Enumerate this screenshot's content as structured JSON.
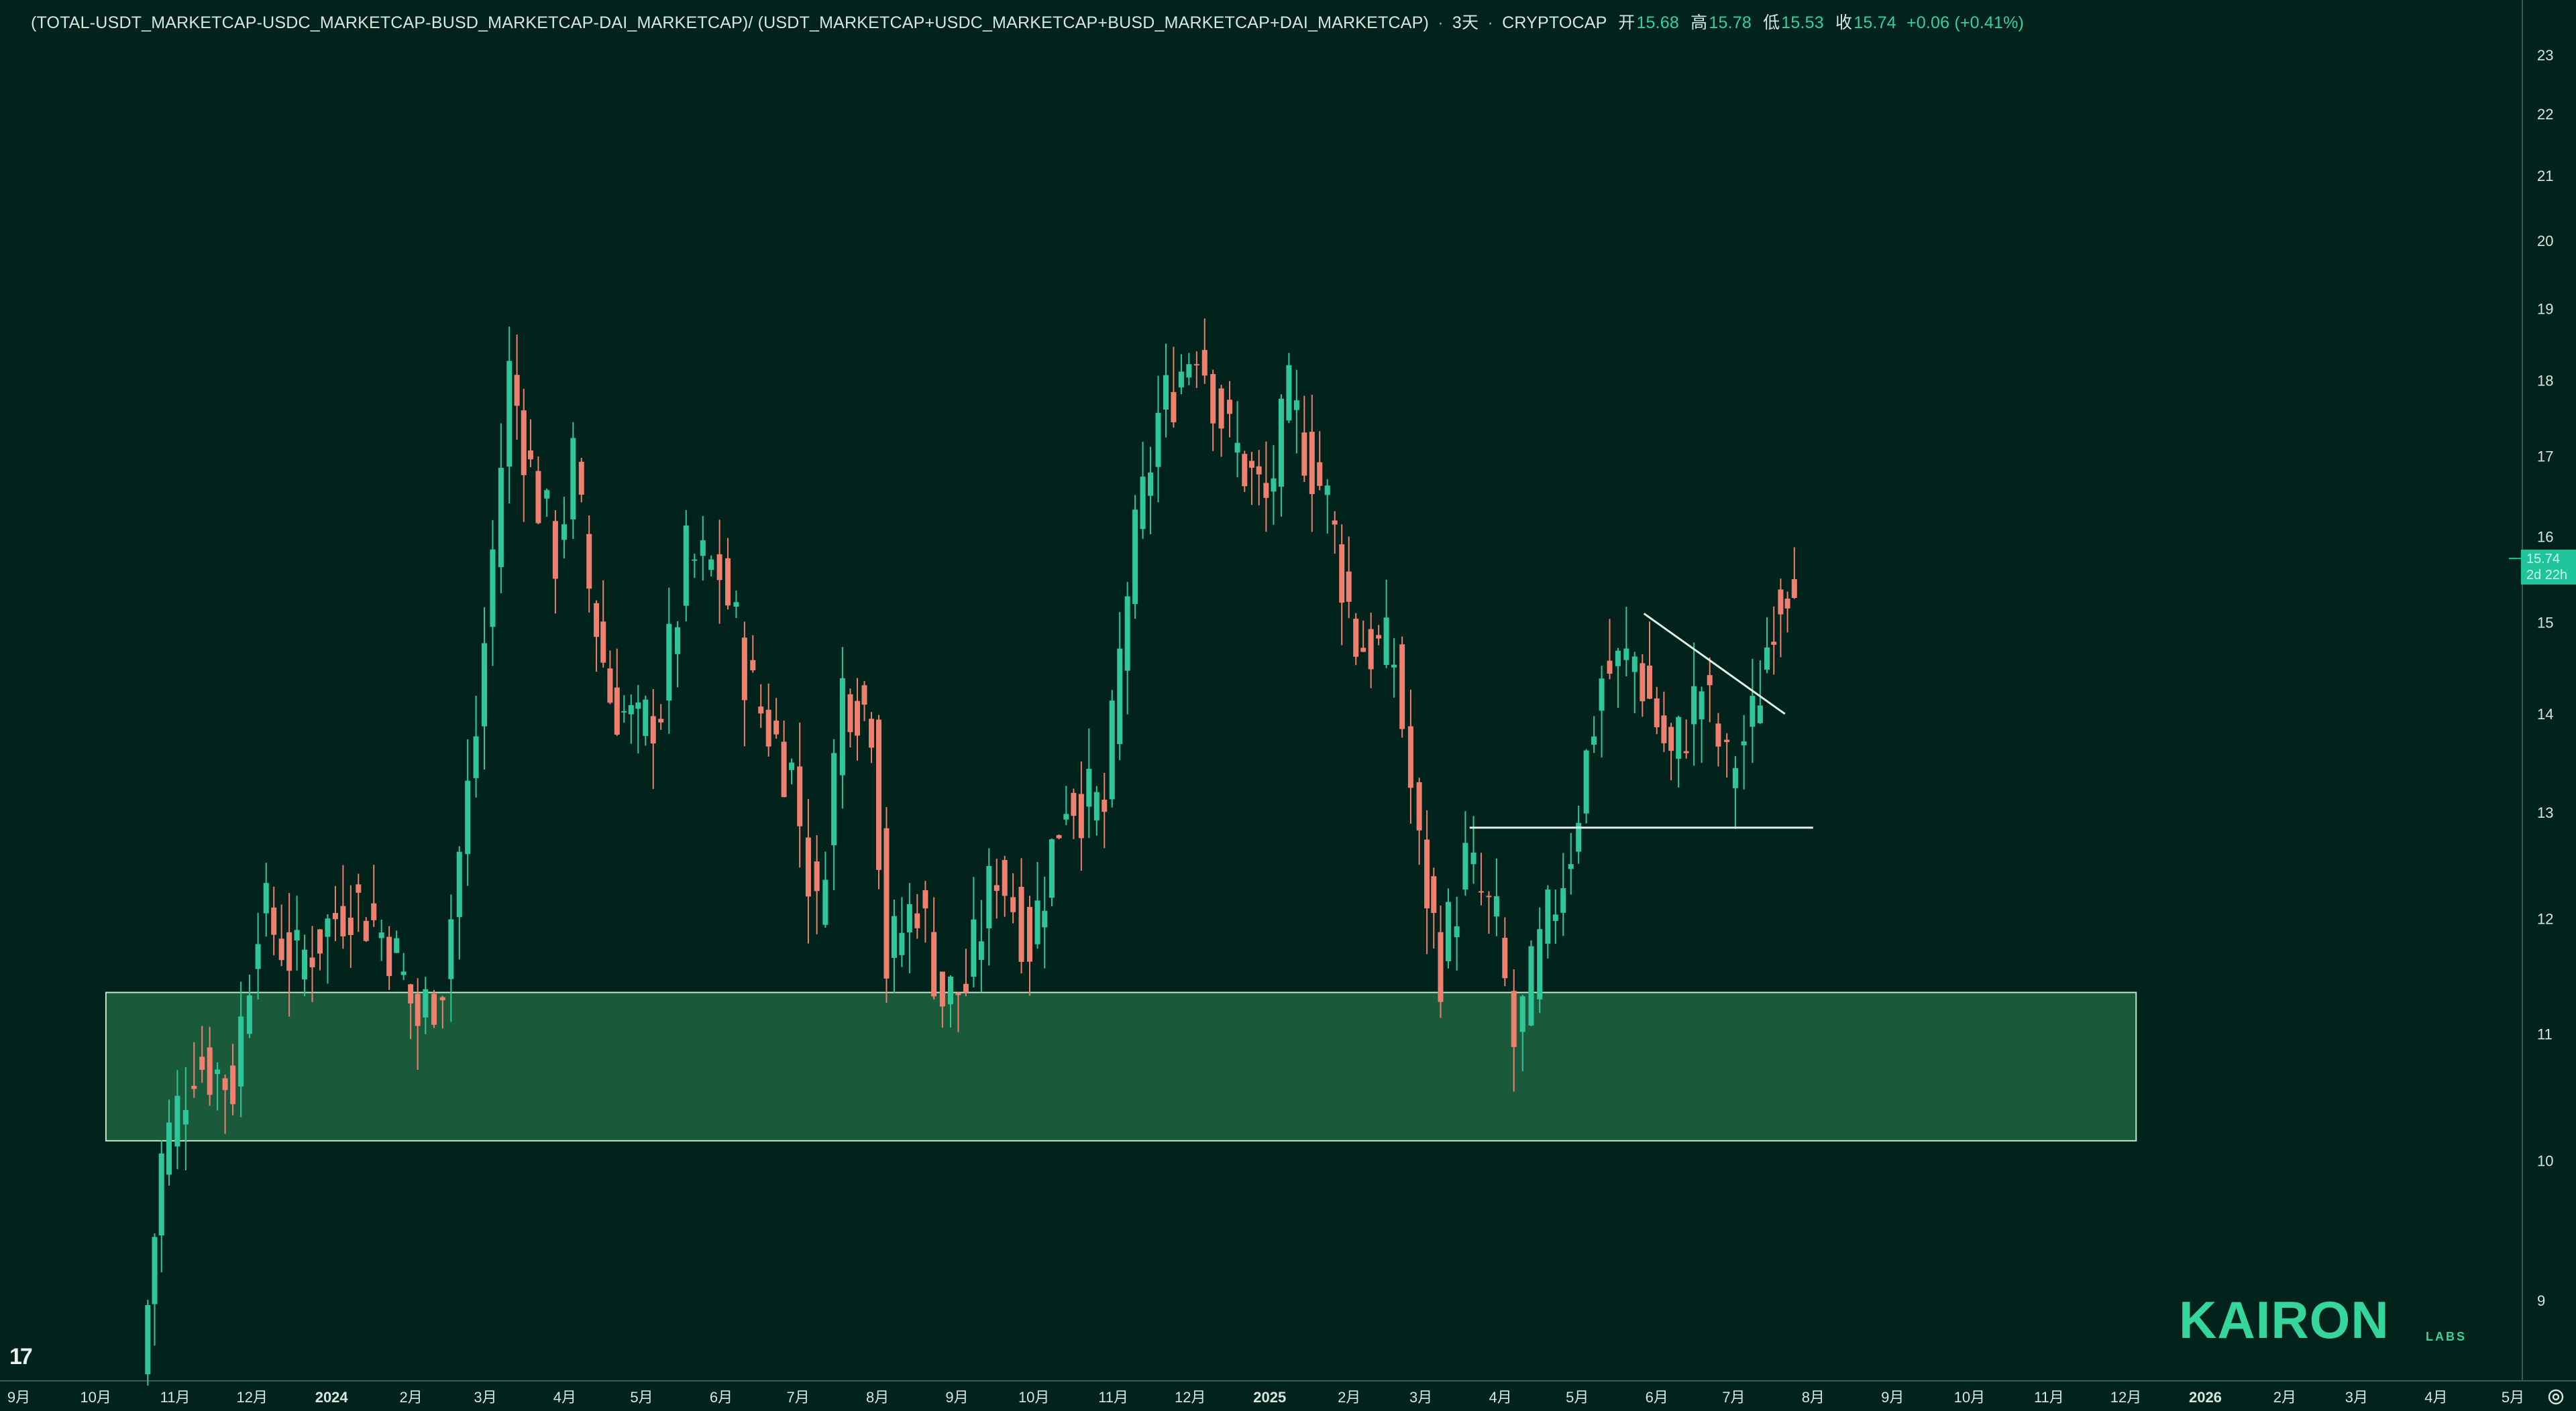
{
  "header": {
    "symbol": "(TOTAL-USDT_MARKETCAP-USDC_MARKETCAP-BUSD_MARKETCAP-DAI_MARKETCAP)/ (USDT_MARKETCAP+USDC_MARKETCAP+BUSD_MARKETCAP+DAI_MARKETCAP)",
    "interval": "3天",
    "exchange": "CRYPTOCAP",
    "open_label": "开",
    "open": "15.68",
    "high_label": "高",
    "high": "15.78",
    "low_label": "低",
    "low": "15.53",
    "close_label": "收",
    "close": "15.74",
    "change": "+0.06 (+0.41%)"
  },
  "last_price_label": {
    "price": "15.74",
    "countdown": "2d 22h"
  },
  "branding": {
    "tradingview_logo": "17",
    "kairon": "KAIRON",
    "labs": "LABS"
  },
  "icons": {
    "settings": "settings-icon"
  },
  "colors": {
    "background": "#01231c",
    "up": "#2fc79a",
    "down": "#ef7f6f",
    "zone_fill": "#1a5a3b",
    "zone_stroke": "#bfe8c8",
    "axis_text": "#d8e6e0",
    "annotation_line": "#dff0e6",
    "last_price_bg": "#1fc49a"
  },
  "chart_data": {
    "type": "candlestick",
    "title": "(TOTAL-USDT_MARKETCAP-USDC_MARKETCAP-BUSD_MARKETCAP-DAI_MARKETCAP)/ (USDT_MARKETCAP+USDC_MARKETCAP+BUSD_MARKETCAP+DAI_MARKETCAP)",
    "interval": "3天",
    "y_scale": "log",
    "ylim": [
      8.5,
      23.5
    ],
    "y_ticks": [
      9,
      10,
      11,
      12,
      13,
      14,
      15,
      16,
      17,
      18,
      19,
      20,
      21,
      22,
      23
    ],
    "x_ticks": [
      "9月",
      "10月",
      "11月",
      "12月",
      "2024",
      "2月",
      "3月",
      "4月",
      "5月",
      "6月",
      "7月",
      "8月",
      "9月",
      "10月",
      "11月",
      "12月",
      "2025",
      "2月",
      "3月",
      "4月",
      "5月",
      "6月",
      "7月",
      "8月",
      "9月",
      "10月",
      "11月",
      "12月",
      "2026",
      "2月",
      "3月",
      "4月",
      "5月"
    ],
    "x_range": [
      "2023-09-01",
      "2026-05-01"
    ],
    "price_path": [
      {
        "date": "2023-10-20",
        "price": 8.5
      },
      {
        "date": "2023-10-28",
        "price": 10.0
      },
      {
        "date": "2023-11-10",
        "price": 10.8
      },
      {
        "date": "2023-11-25",
        "price": 10.6
      },
      {
        "date": "2023-12-05",
        "price": 12.1
      },
      {
        "date": "2023-12-20",
        "price": 11.6
      },
      {
        "date": "2024-01-10",
        "price": 12.2
      },
      {
        "date": "2024-01-25",
        "price": 11.8
      },
      {
        "date": "2024-02-05",
        "price": 11.1
      },
      {
        "date": "2024-02-15",
        "price": 11.5
      },
      {
        "date": "2024-02-28",
        "price": 13.8
      },
      {
        "date": "2024-03-12",
        "price": 18.1
      },
      {
        "date": "2024-03-20",
        "price": 16.8
      },
      {
        "date": "2024-03-30",
        "price": 15.8
      },
      {
        "date": "2024-04-06",
        "price": 16.9
      },
      {
        "date": "2024-04-12",
        "price": 15.4
      },
      {
        "date": "2024-04-20",
        "price": 14.2
      },
      {
        "date": "2024-05-01",
        "price": 13.8
      },
      {
        "date": "2024-05-10",
        "price": 14.1
      },
      {
        "date": "2024-05-20",
        "price": 15.7
      },
      {
        "date": "2024-06-02",
        "price": 15.6
      },
      {
        "date": "2024-06-15",
        "price": 14.2
      },
      {
        "date": "2024-06-30",
        "price": 13.4
      },
      {
        "date": "2024-07-10",
        "price": 12.0
      },
      {
        "date": "2024-07-20",
        "price": 14.3
      },
      {
        "date": "2024-07-31",
        "price": 14.0
      },
      {
        "date": "2024-08-06",
        "price": 11.6
      },
      {
        "date": "2024-08-18",
        "price": 12.2
      },
      {
        "date": "2024-08-28",
        "price": 11.3
      },
      {
        "date": "2024-09-06",
        "price": 11.4
      },
      {
        "date": "2024-09-18",
        "price": 12.5
      },
      {
        "date": "2024-10-01",
        "price": 11.8
      },
      {
        "date": "2024-10-15",
        "price": 13.2
      },
      {
        "date": "2024-10-30",
        "price": 13.0
      },
      {
        "date": "2024-11-08",
        "price": 15.4
      },
      {
        "date": "2024-11-20",
        "price": 17.5
      },
      {
        "date": "2024-12-05",
        "price": 18.6
      },
      {
        "date": "2024-12-18",
        "price": 17.2
      },
      {
        "date": "2025-01-01",
        "price": 16.4
      },
      {
        "date": "2025-01-10",
        "price": 17.7
      },
      {
        "date": "2025-01-25",
        "price": 16.4
      },
      {
        "date": "2025-02-05",
        "price": 14.8
      },
      {
        "date": "2025-02-20",
        "price": 14.6
      },
      {
        "date": "2025-03-02",
        "price": 12.6
      },
      {
        "date": "2025-03-10",
        "price": 11.6
      },
      {
        "date": "2025-03-20",
        "price": 12.5
      },
      {
        "date": "2025-04-01",
        "price": 11.9
      },
      {
        "date": "2025-04-08",
        "price": 10.9
      },
      {
        "date": "2025-04-18",
        "price": 11.7
      },
      {
        "date": "2025-04-30",
        "price": 12.7
      },
      {
        "date": "2025-05-12",
        "price": 14.4
      },
      {
        "date": "2025-05-25",
        "price": 14.6
      },
      {
        "date": "2025-06-08",
        "price": 13.5
      },
      {
        "date": "2025-06-20",
        "price": 14.3
      },
      {
        "date": "2025-06-30",
        "price": 13.4
      },
      {
        "date": "2025-07-10",
        "price": 13.9
      },
      {
        "date": "2025-07-18",
        "price": 15.2
      },
      {
        "date": "2025-07-26",
        "price": 15.74
      }
    ],
    "annotations": {
      "demand_zone": {
        "date_start": "2023-10-05",
        "date_end": "2025-12-05",
        "price_low": 10.15,
        "price_high": 11.35
      },
      "horizontal_line": {
        "date_start": "2025-03-20",
        "date_end": "2025-08-01",
        "price": 12.85
      },
      "descending_trendline": {
        "date_start": "2025-05-27",
        "price_start": 15.1,
        "date_end": "2025-07-21",
        "price_end": 14.0
      }
    },
    "last_price": 15.74
  }
}
